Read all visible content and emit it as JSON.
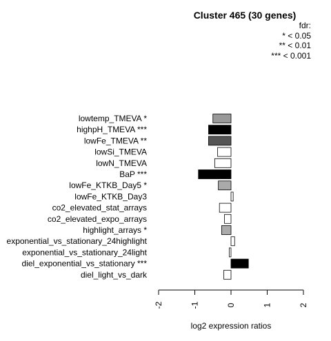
{
  "chart_data": {
    "type": "bar",
    "orientation": "horizontal",
    "title": "Cluster 465 (30 genes)",
    "xlabel": "log2 expression ratios",
    "ylabel": "",
    "xlim": [
      -2,
      2
    ],
    "xticks": [
      "-2",
      "-1",
      "0",
      "1",
      "2"
    ],
    "legend": {
      "title": "fdr:",
      "entries": [
        "* < 0.05",
        "** < 0.01",
        "*** < 0.001"
      ],
      "position": "top-right"
    },
    "bars": [
      {
        "label": "lowtemp_TMEVA *",
        "value": -0.5,
        "fill": "#999999"
      },
      {
        "label": "highpH_TMEVA ***",
        "value": -0.62,
        "fill": "#000000"
      },
      {
        "label": "lowFe_TMEVA **",
        "value": -0.62,
        "fill": "#555555"
      },
      {
        "label": "lowSi_TMEVA",
        "value": -0.37,
        "fill": "#ffffff"
      },
      {
        "label": "lowN_TMEVA",
        "value": -0.45,
        "fill": "#ffffff"
      },
      {
        "label": "BaP ***",
        "value": -0.9,
        "fill": "#000000"
      },
      {
        "label": "lowFe_KTKB_Day5 *",
        "value": -0.35,
        "fill": "#aaaaaa"
      },
      {
        "label": "lowFe_KTKB_Day3",
        "value": 0.06,
        "fill": "#ffffff"
      },
      {
        "label": "co2_elevated_stat_arrays",
        "value": -0.32,
        "fill": "#ffffff"
      },
      {
        "label": "co2_elevated_expo_arrays",
        "value": -0.18,
        "fill": "#ffffff"
      },
      {
        "label": "highlight_arrays *",
        "value": -0.26,
        "fill": "#aaaaaa"
      },
      {
        "label": "exponential_vs_stationary_24highlight",
        "value": 0.1,
        "fill": "#ffffff"
      },
      {
        "label": "exponential_vs_stationary_24light",
        "value": -0.05,
        "fill": "#ffffff"
      },
      {
        "label": "diel_exponential_vs_stationary ***",
        "value": 0.48,
        "fill": "#000000"
      },
      {
        "label": "diel_light_vs_dark",
        "value": -0.2,
        "fill": "#ffffff"
      }
    ]
  }
}
